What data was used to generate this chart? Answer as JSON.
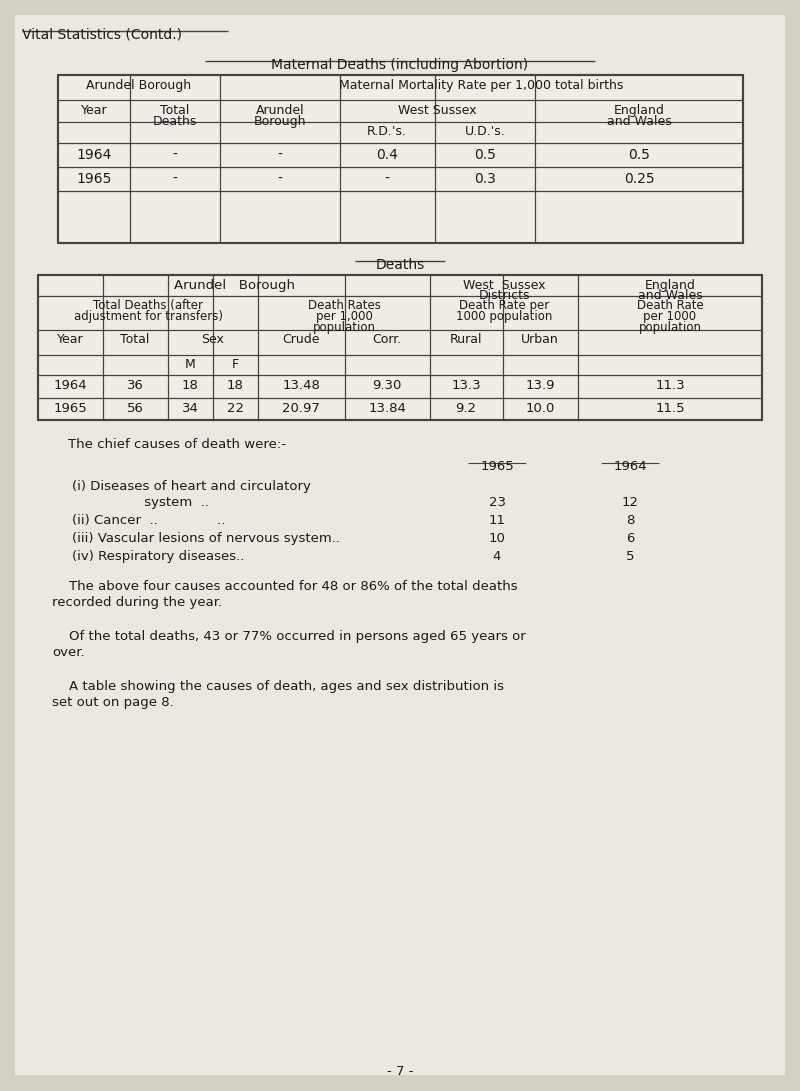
{
  "page_title": "Vital Statistics (Contd.)",
  "section1_title": "Maternal Deaths (including Abortion)",
  "table1_data": [
    [
      "1964",
      "-",
      "-",
      "0.4",
      "0.5",
      "0.5"
    ],
    [
      "1965",
      "-",
      "-",
      "-",
      "0.3",
      "0.25"
    ]
  ],
  "section2_title": "Deaths",
  "table2_data": [
    [
      "1964",
      "36",
      "18",
      "18",
      "13.48",
      "9.30",
      "13.3",
      "13.9",
      "11.3"
    ],
    [
      "1965",
      "56",
      "34",
      "22",
      "20.97",
      "13.84",
      "9.2",
      "10.0",
      "11.5"
    ]
  ],
  "causes_intro": "The chief causes of death were:-",
  "causes": [
    {
      "line1": "(i) Diseases of heart and circulatory",
      "line2": "                 system  ..",
      "val1965": "23",
      "val1964": "12"
    },
    {
      "line1": "(ii) Cancer  ..              ..",
      "line2": "",
      "val1965": "11",
      "val1964": "8"
    },
    {
      "line1": "(iii) Vascular lesions of nervous system.. ",
      "line2": "",
      "val1965": "10",
      "val1964": "6"
    },
    {
      "line1": "(iv) Respiratory diseases..",
      "line2": "",
      "val1965": "4",
      "val1964": "5"
    }
  ],
  "para1_l1": "    The above four causes accounted for 48 or 86% of the total deaths",
  "para1_l2": "recorded during the year.",
  "para2_l1": "    Of the total deaths, 43 or 77% occurred in persons aged 65 years or",
  "para2_l2": "over.",
  "para3_l1": "    A table showing the causes of death, ages and sex distribution is",
  "para3_l2": "set out on page 8.",
  "page_number": "- 7 -",
  "bg_outer": "#d4d0c4",
  "bg_inner": "#eae8df",
  "bg_table": "#f0ede4",
  "text_color": "#1a1a1a",
  "line_color": "#444444"
}
